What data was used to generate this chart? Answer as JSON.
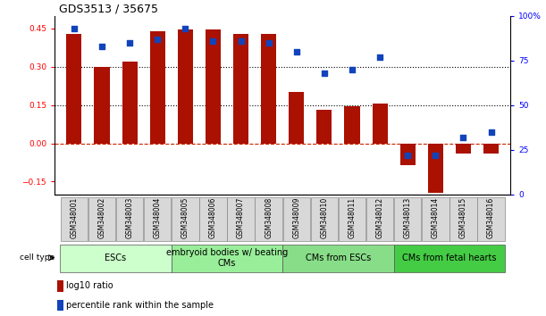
{
  "title": "GDS3513 / 35675",
  "samples": [
    "GSM348001",
    "GSM348002",
    "GSM348003",
    "GSM348004",
    "GSM348005",
    "GSM348006",
    "GSM348007",
    "GSM348008",
    "GSM348009",
    "GSM348010",
    "GSM348011",
    "GSM348012",
    "GSM348013",
    "GSM348014",
    "GSM348015",
    "GSM348016"
  ],
  "log10_ratio": [
    0.43,
    0.3,
    0.32,
    0.44,
    0.445,
    0.445,
    0.43,
    0.43,
    0.2,
    0.13,
    0.145,
    0.155,
    -0.085,
    -0.195,
    -0.04,
    -0.04
  ],
  "percentile_rank": [
    93,
    83,
    85,
    87,
    93,
    86,
    86,
    85,
    80,
    68,
    70,
    77,
    22,
    22,
    32,
    35
  ],
  "bar_color": "#aa1100",
  "dot_color": "#1144bb",
  "ylim_left": [
    -0.2,
    0.5
  ],
  "ylim_right": [
    0,
    100
  ],
  "yticks_left": [
    -0.15,
    0.0,
    0.15,
    0.3,
    0.45
  ],
  "yticks_right": [
    0,
    25,
    50,
    75,
    100
  ],
  "ytick_labels_right": [
    "0",
    "25",
    "50",
    "75",
    "100%"
  ],
  "hlines": [
    0.15,
    0.3
  ],
  "bg_color": "#ffffff",
  "cell_type_ranges": [
    {
      "label": "ESCs",
      "start": 0,
      "end": 3,
      "color": "#ccffcc"
    },
    {
      "label": "embryoid bodies w/ beating\nCMs",
      "start": 4,
      "end": 7,
      "color": "#99ee99"
    },
    {
      "label": "CMs from ESCs",
      "start": 8,
      "end": 11,
      "color": "#88dd88"
    },
    {
      "label": "CMs from fetal hearts",
      "start": 12,
      "end": 15,
      "color": "#44cc44"
    }
  ],
  "legend_bar_label": "log10 ratio",
  "legend_dot_label": "percentile rank within the sample",
  "bar_width": 0.55,
  "tick_label_fontsize": 6.5,
  "sample_label_fontsize": 5.5,
  "cell_type_fontsize": 7.0
}
